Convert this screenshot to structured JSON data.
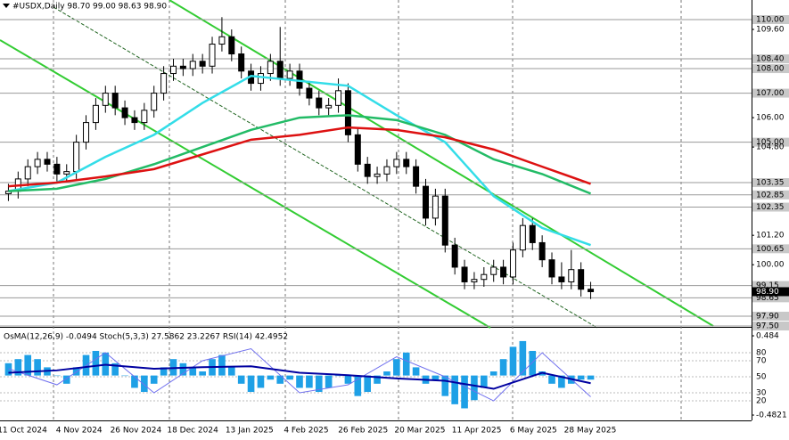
{
  "chart_data": {
    "type": "candlestick",
    "title": "#USDX,Daily 98.70 99.00 98.63 98.90",
    "ylim": [
      97.5,
      110.8
    ],
    "open": [
      102.9,
      103.0,
      103.5,
      104.0,
      104.3,
      104.1,
      103.7,
      103.8,
      105.0,
      105.8,
      106.5,
      107.0,
      106.4,
      106.0,
      105.8,
      106.3,
      107.0,
      107.8,
      108.1,
      108.0,
      108.3,
      108.1,
      109.0,
      109.3,
      108.6,
      107.9,
      107.4,
      107.8,
      108.3,
      107.6,
      107.9,
      107.2,
      106.8,
      106.4,
      106.5,
      107.1,
      105.3,
      104.1,
      103.6,
      103.7,
      104.0,
      104.3,
      104.0,
      103.2,
      101.9,
      102.8,
      100.8,
      99.9,
      99.3,
      99.4,
      99.6,
      99.9,
      99.5,
      100.6,
      101.6,
      100.9,
      100.2,
      99.5,
      99.3,
      99.8,
      99.0
    ],
    "high": [
      103.3,
      103.8,
      104.3,
      104.6,
      104.6,
      104.4,
      104.1,
      105.3,
      106.1,
      106.8,
      107.3,
      107.3,
      106.7,
      106.3,
      106.6,
      107.3,
      108.1,
      108.4,
      108.4,
      108.6,
      108.6,
      109.3,
      110.1,
      109.6,
      108.9,
      108.2,
      108.1,
      108.6,
      109.7,
      108.2,
      108.2,
      107.5,
      107.1,
      106.8,
      107.6,
      107.4,
      105.6,
      104.4,
      104.0,
      104.3,
      104.6,
      104.6,
      104.3,
      103.5,
      103.1,
      103.1,
      101.1,
      100.2,
      99.7,
      99.9,
      100.2,
      100.2,
      100.9,
      101.9,
      101.9,
      101.2,
      100.5,
      100.1,
      100.6,
      100.1,
      99.3
    ],
    "low": [
      102.6,
      102.7,
      103.2,
      103.7,
      103.8,
      103.4,
      103.4,
      103.5,
      104.7,
      105.5,
      106.2,
      106.1,
      105.7,
      105.5,
      105.5,
      106.0,
      106.7,
      107.5,
      107.7,
      107.7,
      107.8,
      107.8,
      108.7,
      108.3,
      107.6,
      107.1,
      107.1,
      107.5,
      107.3,
      107.3,
      106.9,
      106.5,
      106.1,
      106.1,
      106.2,
      105.0,
      103.8,
      103.3,
      103.3,
      103.4,
      103.7,
      103.7,
      102.9,
      101.6,
      101.6,
      100.5,
      99.6,
      99.0,
      99.0,
      99.1,
      99.3,
      99.2,
      99.2,
      100.3,
      100.6,
      99.9,
      99.2,
      99.0,
      99.0,
      98.7,
      98.6
    ],
    "close": [
      103.0,
      103.5,
      104.0,
      104.3,
      104.1,
      103.7,
      103.8,
      105.0,
      105.8,
      106.5,
      107.0,
      106.4,
      106.0,
      105.8,
      106.3,
      107.0,
      107.8,
      108.1,
      108.0,
      108.3,
      108.1,
      109.0,
      109.3,
      108.6,
      107.9,
      107.4,
      107.8,
      108.3,
      107.6,
      107.9,
      107.2,
      106.8,
      106.4,
      106.5,
      107.1,
      105.3,
      104.1,
      103.6,
      103.7,
      104.0,
      104.3,
      104.0,
      103.2,
      101.9,
      102.8,
      100.8,
      99.9,
      99.3,
      99.4,
      99.6,
      99.9,
      99.5,
      100.6,
      101.6,
      100.9,
      100.2,
      99.5,
      99.3,
      99.8,
      99.0,
      98.9
    ],
    "series": [
      {
        "color": "#33dde8",
        "values": [
          103.0,
          103.35,
          104.4,
          105.3,
          106.6,
          107.7,
          107.5,
          107.3,
          106.1,
          105.0,
          102.8,
          101.5,
          100.8
        ]
      },
      {
        "color": "#22bb66",
        "values": [
          103.0,
          103.1,
          103.5,
          104.1,
          104.8,
          105.5,
          106.0,
          106.1,
          105.9,
          105.3,
          104.3,
          103.7,
          102.9
        ]
      },
      {
        "color": "#dd1111",
        "values": [
          103.2,
          103.35,
          103.6,
          103.9,
          104.5,
          105.1,
          105.3,
          105.6,
          105.5,
          105.2,
          104.7,
          104.0,
          103.3
        ]
      }
    ],
    "levels": [
      {
        "value": 110.0,
        "label": "110.00"
      },
      {
        "value": 108.4,
        "label": "108.40"
      },
      {
        "value": 108.0,
        "label": "108.00"
      },
      {
        "value": 107.0,
        "label": "107.00"
      },
      {
        "value": 105.0,
        "label": "105.00"
      },
      {
        "value": 103.35,
        "label": "103.35"
      },
      {
        "value": 102.85,
        "label": "102.85"
      },
      {
        "value": 102.35,
        "label": "102.35"
      },
      {
        "value": 100.65,
        "label": "100.65"
      },
      {
        "value": 99.15,
        "label": "99.15"
      },
      {
        "value": 98.65,
        "label": "98.65"
      },
      {
        "value": 97.9,
        "label": "97.90"
      },
      {
        "value": 97.5,
        "label": "97.50"
      }
    ],
    "yticks": [
      {
        "value": 109.6,
        "label": "109.60"
      },
      {
        "value": 106.0,
        "label": "106.00"
      },
      {
        "value": 104.8,
        "label": "104.80"
      },
      {
        "value": 101.2,
        "label": "101.20"
      },
      {
        "value": 100.0,
        "label": "100.00"
      }
    ],
    "last": {
      "value": 98.9,
      "label": "98.90"
    },
    "xticks": [
      "11 Oct 2024",
      "4 Nov 2024",
      "26 Nov 2024",
      "18 Dec 2024",
      "13 Jan 2025",
      "4 Feb 2025",
      "26 Feb 2025",
      "20 Mar 2025",
      "11 Apr 2025",
      "6 May 2025",
      "28 May 2025"
    ],
    "indicator": {
      "title": "OsMA(12,26,9) -0.0494 Stoch(5,3,3) 27.5862 23.2267 RSI(14) 42.4952",
      "ylim": [
        -0.547,
        0.582
      ],
      "yticks": [
        0.484,
        -0.4821
      ],
      "y2lim": [
        -4.4,
        111.1
      ],
      "y2ticks": [
        80,
        70,
        50,
        30,
        20
      ],
      "osma": {
        "color": "#1ea0e6",
        "values": [
          0.15,
          0.2,
          0.25,
          0.2,
          0.1,
          0.0,
          -0.1,
          0.1,
          0.25,
          0.3,
          0.28,
          0.15,
          0.0,
          -0.15,
          -0.2,
          -0.1,
          0.1,
          0.2,
          0.15,
          0.1,
          0.05,
          0.2,
          0.25,
          0.1,
          -0.1,
          -0.2,
          -0.15,
          -0.05,
          -0.1,
          -0.05,
          -0.15,
          -0.15,
          -0.2,
          -0.15,
          0.0,
          -0.1,
          -0.25,
          -0.2,
          -0.1,
          0.05,
          0.2,
          0.28,
          0.1,
          -0.1,
          -0.05,
          -0.25,
          -0.35,
          -0.4,
          -0.3,
          -0.15,
          0.05,
          0.2,
          0.35,
          0.42,
          0.3,
          0.05,
          -0.1,
          -0.15,
          -0.1,
          -0.05,
          -0.05
        ]
      },
      "lines": [
        {
          "color": "#7070ee",
          "axis": "y2",
          "values": [
            60,
            40,
            80,
            30,
            70,
            85,
            30,
            40,
            75,
            50,
            20,
            80,
            25
          ]
        },
        {
          "color": "#0000a0",
          "axis": "y2",
          "values": [
            55,
            58,
            65,
            60,
            62,
            63,
            55,
            52,
            48,
            45,
            35,
            55,
            42
          ]
        }
      ]
    }
  }
}
